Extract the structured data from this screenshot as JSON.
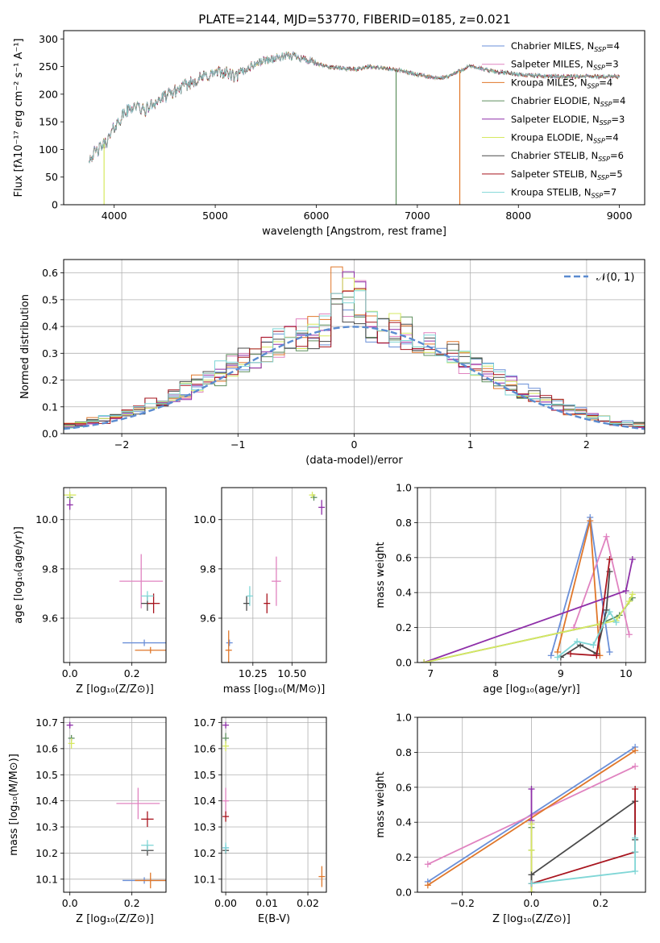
{
  "figure": {
    "title": "PLATE=2144, MJD=53770, FIBERID=0185, z=0.021"
  },
  "colors": {
    "Chabrier MILES": "#6a8fd8",
    "Salpeter MILES": "#e083c0",
    "Kroupa MILES": "#e0772a",
    "Chabrier ELODIE": "#5f8f5f",
    "Salpeter ELODIE": "#8e2fa8",
    "Kroupa ELODIE": "#d6e860",
    "Chabrier STELIB": "#4a4a4a",
    "Salpeter STELIB": "#a8141e",
    "Kroupa STELIB": "#7fd6d6",
    "normal": "#5b8bd0"
  },
  "chart_data": [
    {
      "id": "spectrum",
      "type": "line",
      "title": "PLATE=2144, MJD=53770, FIBERID=0185, z=0.021",
      "xlabel": "wavelength [Angstrom, rest frame]",
      "ylabel": "Flux [fλ10⁻¹⁷ erg cm⁻² s⁻¹ A⁻¹]",
      "xlim": [
        3500,
        9250
      ],
      "ylim": [
        0,
        315
      ],
      "xticks": [
        "4000",
        "5000",
        "6000",
        "7000",
        "8000",
        "9000"
      ],
      "yticks": [
        "0",
        "50",
        "100",
        "150",
        "200",
        "250",
        "300"
      ],
      "grid": false,
      "legend_position": "upper-right",
      "series": [
        {
          "name": "Chabrier MILES, N",
          "sub": "SSP",
          "suffix": "=4"
        },
        {
          "name": "Salpeter MILES, N",
          "sub": "SSP",
          "suffix": "=3"
        },
        {
          "name": "Kroupa MILES, N",
          "sub": "SSP",
          "suffix": "=4"
        },
        {
          "name": "Chabrier ELODIE, N",
          "sub": "SSP",
          "suffix": "=4"
        },
        {
          "name": "Salpeter ELODIE, N",
          "sub": "SSP",
          "suffix": "=3"
        },
        {
          "name": "Kroupa ELODIE, N",
          "sub": "SSP",
          "suffix": "=4"
        },
        {
          "name": "Chabrier STELIB, N",
          "sub": "SSP",
          "suffix": "=6"
        },
        {
          "name": "Salpeter STELIB, N",
          "sub": "SSP",
          "suffix": "=5"
        },
        {
          "name": "Kroupa STELIB, N",
          "sub": "SSP",
          "suffix": "=7"
        }
      ],
      "continuum": [
        [
          3750,
          85
        ],
        [
          3850,
          100
        ],
        [
          3950,
          120
        ],
        [
          4000,
          140
        ],
        [
          4100,
          165
        ],
        [
          4200,
          180
        ],
        [
          4300,
          170
        ],
        [
          4400,
          185
        ],
        [
          4500,
          195
        ],
        [
          4600,
          205
        ],
        [
          4700,
          215
        ],
        [
          4800,
          225
        ],
        [
          4900,
          232
        ],
        [
          5000,
          238
        ],
        [
          5100,
          240
        ],
        [
          5200,
          230
        ],
        [
          5300,
          245
        ],
        [
          5400,
          255
        ],
        [
          5500,
          262
        ],
        [
          5600,
          265
        ],
        [
          5700,
          268
        ],
        [
          5800,
          270
        ],
        [
          5900,
          262
        ],
        [
          6000,
          255
        ],
        [
          6100,
          250
        ],
        [
          6200,
          248
        ],
        [
          6300,
          246
        ],
        [
          6400,
          245
        ],
        [
          6500,
          250
        ],
        [
          6600,
          248
        ],
        [
          6700,
          246
        ],
        [
          6800,
          244
        ],
        [
          6900,
          240
        ],
        [
          7000,
          235
        ],
        [
          7100,
          232
        ],
        [
          7200,
          228
        ],
        [
          7300,
          232
        ],
        [
          7400,
          240
        ],
        [
          7500,
          250
        ],
        [
          7600,
          248
        ],
        [
          7700,
          243
        ],
        [
          7800,
          240
        ],
        [
          7900,
          238
        ],
        [
          8000,
          236
        ],
        [
          8200,
          233
        ],
        [
          8400,
          232
        ],
        [
          8600,
          232
        ],
        [
          8800,
          232
        ],
        [
          9000,
          232
        ]
      ],
      "spikes": [
        3900,
        6790,
        7420
      ]
    },
    {
      "id": "residuals",
      "type": "line",
      "xlabel": "(data-model)/error",
      "ylabel": "Normed distribution",
      "xlim": [
        -2.5,
        2.5
      ],
      "ylim": [
        0,
        0.65
      ],
      "xticks": [
        "−2",
        "−1",
        "0",
        "1",
        "2"
      ],
      "yticks": [
        "0.0",
        "0.1",
        "0.2",
        "0.3",
        "0.4",
        "0.5",
        "0.6"
      ],
      "grid": true,
      "legend_position": "upper-right",
      "legend": "𝒩(0, 1)",
      "bin_width": 0.1,
      "bin_start": -2.5
    },
    {
      "id": "age-vs-Z",
      "type": "scatter",
      "xlabel": "Z [log₁₀(Z/Z⊙)]",
      "ylabel": "age  [log₁₀(age/yr)]",
      "xlim": [
        -0.02,
        0.31
      ],
      "ylim": [
        9.42,
        10.13
      ],
      "xticks": [
        "0.0",
        "0.2"
      ],
      "yticks": [
        "9.6",
        "9.8",
        "10.0"
      ],
      "grid": true,
      "points": [
        {
          "s": "Chabrier MILES",
          "x": 0.24,
          "y": 9.5,
          "ex": 0.07,
          "ey": 0.0
        },
        {
          "s": "Salpeter MILES",
          "x": 0.23,
          "y": 9.75,
          "ex": 0.07,
          "ey": 0.11
        },
        {
          "s": "Kroupa MILES",
          "x": 0.26,
          "y": 9.47,
          "ex": 0.05,
          "ey": 0.0
        },
        {
          "s": "Chabrier ELODIE",
          "x": 0.0,
          "y": 10.09,
          "ex": 0.01,
          "ey": 0.01
        },
        {
          "s": "Salpeter ELODIE",
          "x": 0.0,
          "y": 10.06,
          "ex": 0.0,
          "ey": 0.02
        },
        {
          "s": "Kroupa ELODIE",
          "x": 0.0,
          "y": 10.1,
          "ex": 0.02,
          "ey": 0.01
        },
        {
          "s": "Chabrier STELIB",
          "x": 0.25,
          "y": 9.66,
          "ex": 0.02,
          "ey": 0.03
        },
        {
          "s": "Salpeter STELIB",
          "x": 0.27,
          "y": 9.66,
          "ex": 0.02,
          "ey": 0.04
        },
        {
          "s": "Kroupa STELIB",
          "x": 0.25,
          "y": 9.69,
          "ex": 0.02,
          "ey": 0.02
        }
      ]
    },
    {
      "id": "age-vs-mass",
      "type": "scatter",
      "xlabel": "mass [log₁₀(M/M⊙)]",
      "ylabel": "",
      "xlim": [
        10.05,
        10.72
      ],
      "ylim": [
        9.42,
        10.13
      ],
      "xticks": [
        "10.25",
        "10.50"
      ],
      "yticks": [
        "9.6",
        "9.8",
        "10.0"
      ],
      "grid": true,
      "points": [
        {
          "s": "Chabrier MILES",
          "x": 10.1,
          "y": 9.5,
          "ex": 0.01,
          "ey": 0.0
        },
        {
          "s": "Salpeter MILES",
          "x": 10.4,
          "y": 9.75,
          "ex": 0.03,
          "ey": 0.1
        },
        {
          "s": "Kroupa MILES",
          "x": 10.095,
          "y": 9.47,
          "ex": 0.0,
          "ey": 0.08
        },
        {
          "s": "Chabrier ELODIE",
          "x": 10.64,
          "y": 10.09,
          "ex": 0.01,
          "ey": 0.01
        },
        {
          "s": "Salpeter ELODIE",
          "x": 10.69,
          "y": 10.05,
          "ex": 0.01,
          "ey": 0.03
        },
        {
          "s": "Kroupa ELODIE",
          "x": 10.63,
          "y": 10.1,
          "ex": 0.01,
          "ey": 0.01
        },
        {
          "s": "Chabrier STELIB",
          "x": 10.21,
          "y": 9.66,
          "ex": 0.01,
          "ey": 0.03
        },
        {
          "s": "Salpeter STELIB",
          "x": 10.34,
          "y": 9.66,
          "ex": 0.01,
          "ey": 0.04
        },
        {
          "s": "Kroupa STELIB",
          "x": 10.23,
          "y": 9.69,
          "ex": 0.01,
          "ey": 0.04
        }
      ]
    },
    {
      "id": "weight-vs-age",
      "type": "line",
      "xlabel": "age  [log₁₀(age/yr)]",
      "ylabel": "mass weight",
      "xlim": [
        6.8,
        10.3
      ],
      "ylim": [
        0,
        1.0
      ],
      "xticks": [
        "7",
        "8",
        "9",
        "10"
      ],
      "yticks": [
        "0.0",
        "0.2",
        "0.4",
        "0.6",
        "0.8",
        "1.0"
      ],
      "grid": true,
      "series": [
        {
          "s": "Chabrier MILES",
          "x": [
            8.85,
            9.45,
            9.75
          ],
          "y": [
            0.04,
            0.83,
            0.06
          ]
        },
        {
          "s": "Salpeter MILES",
          "x": [
            9.2,
            9.7,
            10.05
          ],
          "y": [
            0.2,
            0.72,
            0.16
          ]
        },
        {
          "s": "Kroupa MILES",
          "x": [
            8.95,
            9.45,
            9.6
          ],
          "y": [
            0.06,
            0.81,
            0.04
          ]
        },
        {
          "s": "Chabrier ELODIE",
          "x": [
            6.9,
            9.6,
            9.9,
            10.1
          ],
          "y": [
            0.0,
            0.22,
            0.27,
            0.37
          ]
        },
        {
          "s": "Salpeter ELODIE",
          "x": [
            6.9,
            10.0,
            10.1
          ],
          "y": [
            0.0,
            0.41,
            0.59
          ]
        },
        {
          "s": "Kroupa ELODIE",
          "x": [
            6.9,
            9.6,
            9.85,
            10.05,
            10.1
          ],
          "y": [
            0.0,
            0.22,
            0.24,
            0.35,
            0.39
          ]
        },
        {
          "s": "Chabrier STELIB",
          "x": [
            9.0,
            9.3,
            9.55,
            9.7,
            9.75
          ],
          "y": [
            0.03,
            0.1,
            0.05,
            0.3,
            0.52
          ]
        },
        {
          "s": "Salpeter STELIB",
          "x": [
            9.15,
            9.55,
            9.75
          ],
          "y": [
            0.05,
            0.04,
            0.59
          ]
        },
        {
          "s": "Kroupa STELIB",
          "x": [
            8.95,
            9.25,
            9.5,
            9.75,
            9.85
          ],
          "y": [
            0.03,
            0.12,
            0.1,
            0.29,
            0.23
          ]
        }
      ]
    },
    {
      "id": "mass-vs-Z",
      "type": "scatter",
      "xlabel": "Z [log₁₀(Z/Z⊙)]",
      "ylabel": "mass [log₁₀(M/M⊙)]",
      "xlim": [
        -0.02,
        0.31
      ],
      "ylim": [
        10.05,
        10.72
      ],
      "xticks": [
        "0.0",
        "0.2"
      ],
      "yticks": [
        "10.1",
        "10.2",
        "10.3",
        "10.4",
        "10.5",
        "10.6",
        "10.7"
      ],
      "grid": true,
      "points": [
        {
          "s": "Chabrier MILES",
          "x": 0.24,
          "y": 10.095,
          "ex": 0.07,
          "ey": 0.0
        },
        {
          "s": "Salpeter MILES",
          "x": 0.22,
          "y": 10.39,
          "ex": 0.07,
          "ey": 0.06
        },
        {
          "s": "Kroupa MILES",
          "x": 0.26,
          "y": 10.095,
          "ex": 0.05,
          "ey": 0.03
        },
        {
          "s": "Chabrier ELODIE",
          "x": 0.005,
          "y": 10.64,
          "ex": 0.01,
          "ey": 0.0
        },
        {
          "s": "Salpeter ELODIE",
          "x": 0.0,
          "y": 10.69,
          "ex": 0.0,
          "ey": 0.01
        },
        {
          "s": "Kroupa ELODIE",
          "x": 0.005,
          "y": 10.62,
          "ex": 0.01,
          "ey": 0.02
        },
        {
          "s": "Chabrier STELIB",
          "x": 0.25,
          "y": 10.21,
          "ex": 0.02,
          "ey": 0.02
        },
        {
          "s": "Salpeter STELIB",
          "x": 0.25,
          "y": 10.33,
          "ex": 0.02,
          "ey": 0.03
        },
        {
          "s": "Kroupa STELIB",
          "x": 0.25,
          "y": 10.23,
          "ex": 0.02,
          "ey": 0.02
        }
      ]
    },
    {
      "id": "mass-vs-EBV",
      "type": "scatter",
      "xlabel": "E(B-V)",
      "ylabel": "",
      "xlim": [
        -0.001,
        0.0245
      ],
      "ylim": [
        10.05,
        10.72
      ],
      "xticks": [
        "0.00",
        "0.01",
        "0.02"
      ],
      "yticks": [
        "10.1",
        "10.2",
        "10.3",
        "10.4",
        "10.5",
        "10.6",
        "10.7"
      ],
      "grid": true,
      "points": [
        {
          "s": "Chabrier MILES",
          "x": 0.0,
          "y": 10.22,
          "ex": 0.0,
          "ey": 0.01
        },
        {
          "s": "Salpeter MILES",
          "x": 0.0,
          "y": 10.4,
          "ex": 0.0,
          "ey": 0.05
        },
        {
          "s": "Kroupa MILES",
          "x": 0.0234,
          "y": 10.11,
          "ex": 0.0,
          "ey": 0.04
        },
        {
          "s": "Chabrier ELODIE",
          "x": 0.0,
          "y": 10.64,
          "ex": 0.0,
          "ey": 0.02
        },
        {
          "s": "Salpeter ELODIE",
          "x": 0.0,
          "y": 10.69,
          "ex": 0.0,
          "ey": 0.01
        },
        {
          "s": "Kroupa ELODIE",
          "x": 0.0,
          "y": 10.61,
          "ex": 0.0,
          "ey": 0.02
        },
        {
          "s": "Chabrier STELIB",
          "x": 0.0,
          "y": 10.21,
          "ex": 0.0,
          "ey": 0.01
        },
        {
          "s": "Salpeter STELIB",
          "x": 0.0,
          "y": 10.34,
          "ex": 0.0,
          "ey": 0.02
        },
        {
          "s": "Kroupa STELIB",
          "x": 0.0,
          "y": 10.22,
          "ex": 0.0,
          "ey": 0.02
        }
      ]
    },
    {
      "id": "weight-vs-Z",
      "type": "line",
      "xlabel": "Z [log₁₀(Z/Z⊙)]",
      "ylabel": "mass weight",
      "xlim": [
        -0.33,
        0.33
      ],
      "ylim": [
        0,
        1.0
      ],
      "xticks": [
        "−0.2",
        "0.0",
        "0.2"
      ],
      "yticks": [
        "0.0",
        "0.2",
        "0.4",
        "0.6",
        "0.8",
        "1.0"
      ],
      "grid": true,
      "series": [
        {
          "s": "Chabrier MILES",
          "x": [
            -0.3,
            0.3
          ],
          "y": [
            0.06,
            0.83
          ]
        },
        {
          "s": "Salpeter MILES",
          "x": [
            -0.3,
            0.3
          ],
          "y": [
            0.16,
            0.72
          ]
        },
        {
          "s": "Kroupa MILES",
          "x": [
            -0.3,
            0.3
          ],
          "y": [
            0.04,
            0.81
          ]
        },
        {
          "s": "Chabrier ELODIE",
          "x": [
            0.0,
            0.0,
            0.0
          ],
          "y": [
            0.0,
            0.24,
            0.37
          ]
        },
        {
          "s": "Salpeter ELODIE",
          "x": [
            0.0,
            0.0,
            0.0
          ],
          "y": [
            0.0,
            0.41,
            0.59
          ]
        },
        {
          "s": "Kroupa ELODIE",
          "x": [
            0.0,
            0.0,
            0.0
          ],
          "y": [
            0.0,
            0.24,
            0.39
          ]
        },
        {
          "s": "Chabrier STELIB",
          "x": [
            0.0,
            0.0,
            0.3,
            0.3
          ],
          "y": [
            0.05,
            0.1,
            0.52,
            0.3
          ]
        },
        {
          "s": "Salpeter STELIB",
          "x": [
            0.0,
            0.3,
            0.3
          ],
          "y": [
            0.05,
            0.23,
            0.59
          ]
        },
        {
          "s": "Kroupa STELIB",
          "x": [
            0.0,
            0.3,
            0.3,
            0.3
          ],
          "y": [
            0.05,
            0.12,
            0.23,
            0.31
          ]
        }
      ]
    }
  ]
}
